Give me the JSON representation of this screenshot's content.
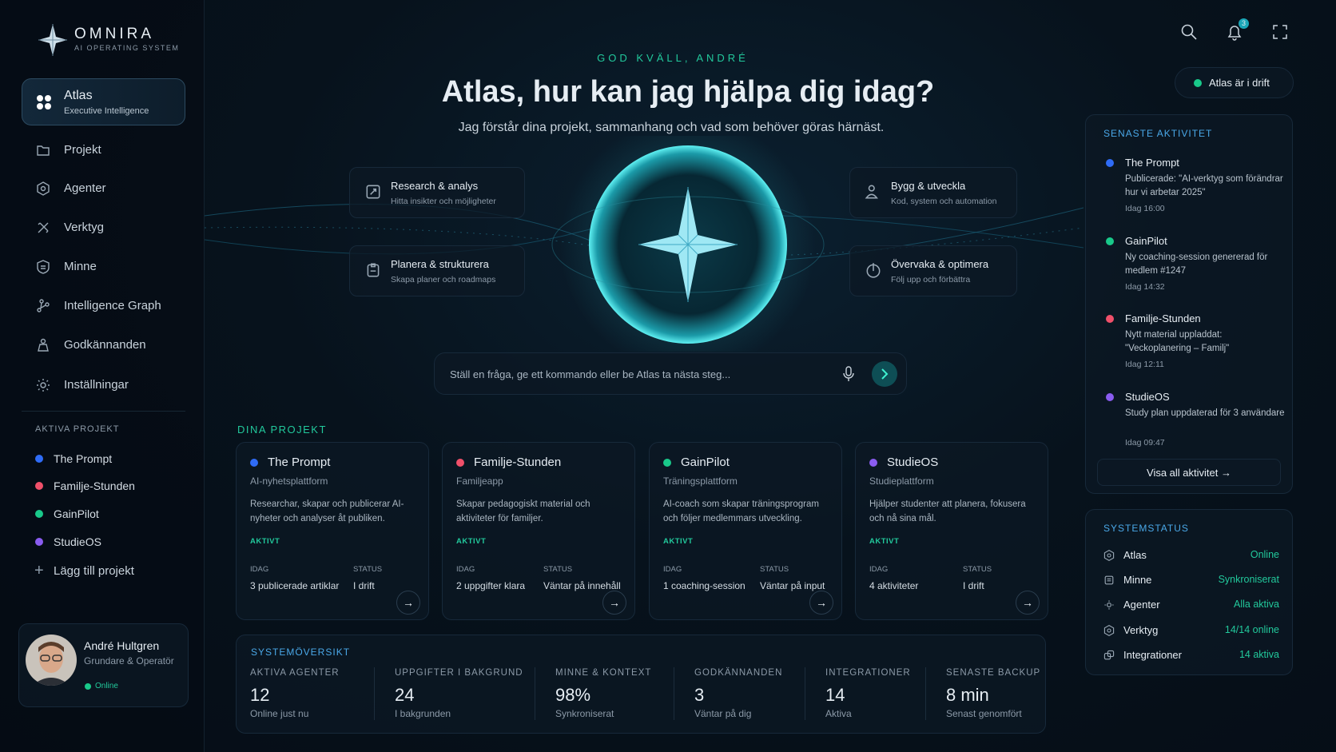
{
  "brand": {
    "name": "OMNIRA",
    "tagline": "AI OPERATING SYSTEM"
  },
  "sidebar": {
    "active": {
      "title": "Atlas",
      "subtitle": "Executive Intelligence"
    },
    "nav": [
      "Projekt",
      "Agenter",
      "Verktyg",
      "Minne",
      "Intelligence Graph",
      "Godkännanden",
      "Inställningar"
    ],
    "projects_heading": "AKTIVA PROJEKT",
    "projects": [
      {
        "name": "The Prompt",
        "color": "#2f6cf6"
      },
      {
        "name": "Familje-Stunden",
        "color": "#f0506a"
      },
      {
        "name": "GainPilot",
        "color": "#19c98a"
      },
      {
        "name": "StudieOS",
        "color": "#8a5cf0"
      }
    ],
    "add_project": "Lägg till projekt",
    "user": {
      "name": "André Hultgren",
      "role": "Grundare & Operatör",
      "status": "Online"
    }
  },
  "header": {
    "notifications": "3",
    "status": "Atlas är i drift"
  },
  "hero": {
    "greeting": "GOD KVÄLL, ANDRÉ",
    "title": "Atlas, hur kan jag hjälpa dig idag?",
    "subtitle": "Jag förstår dina projekt, sammanhang och vad som behöver göras härnäst.",
    "actions": [
      {
        "title": "Research & analys",
        "description": "Hitta insikter och möjligheter"
      },
      {
        "title": "Planera & strukturera",
        "description": "Skapa planer och roadmaps"
      },
      {
        "title": "Bygg & utveckla",
        "description": "Kod, system och automation"
      },
      {
        "title": "Övervaka & optimera",
        "description": "Följ upp och förbättra"
      }
    ],
    "input_placeholder": "Ställ en fråga, ge ett kommando eller be Atlas ta nästa steg..."
  },
  "projects": {
    "heading": "DINA PROJEKT",
    "cards": [
      {
        "name": "The Prompt",
        "color": "#2f6cf6",
        "type": "AI-nyhetsplattform",
        "description": "Researchar, skapar och publicerar AI-nyheter och analyser åt publiken.",
        "status": "AKTIVT",
        "today_label": "IDAG",
        "state_label": "STATUS",
        "today": "3 publicerade artiklar",
        "state": "I drift"
      },
      {
        "name": "Familje-Stunden",
        "color": "#f0506a",
        "type": "Familjeapp",
        "description": "Skapar pedagogiskt material och aktiviteter för familjer.",
        "status": "AKTIVT",
        "today_label": "IDAG",
        "state_label": "STATUS",
        "today": "2 uppgifter klara",
        "state": "Väntar på innehåll"
      },
      {
        "name": "GainPilot",
        "color": "#19c98a",
        "type": "Träningsplattform",
        "description": "AI-coach som skapar träningsprogram och följer medlemmars utveckling.",
        "status": "AKTIVT",
        "today_label": "IDAG",
        "state_label": "STATUS",
        "today": "1 coaching-session",
        "state": "Väntar på input"
      },
      {
        "name": "StudieOS",
        "color": "#8a5cf0",
        "type": "Studieplattform",
        "description": "Hjälper studenter att planera, fokusera och nå sina mål.",
        "status": "AKTIVT",
        "today_label": "IDAG",
        "state_label": "STATUS",
        "today": "4 aktiviteter",
        "state": "I drift"
      }
    ]
  },
  "overview": {
    "heading": "SYSTEMÖVERSIKT",
    "items": [
      {
        "label": "AKTIVA AGENTER",
        "value": "12",
        "note": "Online just nu"
      },
      {
        "label": "UPPGIFTER I BAKGRUND",
        "value": "24",
        "note": "I bakgrunden"
      },
      {
        "label": "MINNE & KONTEXT",
        "value": "98%",
        "note": "Synkroniserat"
      },
      {
        "label": "GODKÄNNANDEN",
        "value": "3",
        "note": "Väntar på dig"
      },
      {
        "label": "INTEGRATIONER",
        "value": "14",
        "note": "Aktiva"
      },
      {
        "label": "SENASTE BACKUP",
        "value": "8 min",
        "note": "Senast genomfört"
      }
    ]
  },
  "activity": {
    "heading": "SENASTE AKTIVITET",
    "items": [
      {
        "name": "The Prompt",
        "color": "#2f6cf6",
        "text": "Publicerade: \"AI-verktyg som förändrar hur vi arbetar 2025\"",
        "time": "Idag 16:00"
      },
      {
        "name": "GainPilot",
        "color": "#19c98a",
        "text": "Ny coaching-session genererad för medlem #1247",
        "time": "Idag 14:32"
      },
      {
        "name": "Familje-Stunden",
        "color": "#f0506a",
        "text": "Nytt material uppladdat: \"Veckoplanering – Familj\"",
        "time": "Idag 12:11"
      },
      {
        "name": "StudieOS",
        "color": "#8a5cf0",
        "text": "Study plan uppdaterad för 3 användare",
        "time": "Idag 09:47"
      }
    ],
    "button": "Visa all aktivitet"
  },
  "system_status": {
    "heading": "SYSTEMSTATUS",
    "items": [
      {
        "name": "Atlas",
        "status": "Online"
      },
      {
        "name": "Minne",
        "status": "Synkroniserat"
      },
      {
        "name": "Agenter",
        "status": "Alla aktiva"
      },
      {
        "name": "Verktyg",
        "status": "14/14 online"
      },
      {
        "name": "Integrationer",
        "status": "14 aktiva"
      }
    ]
  }
}
